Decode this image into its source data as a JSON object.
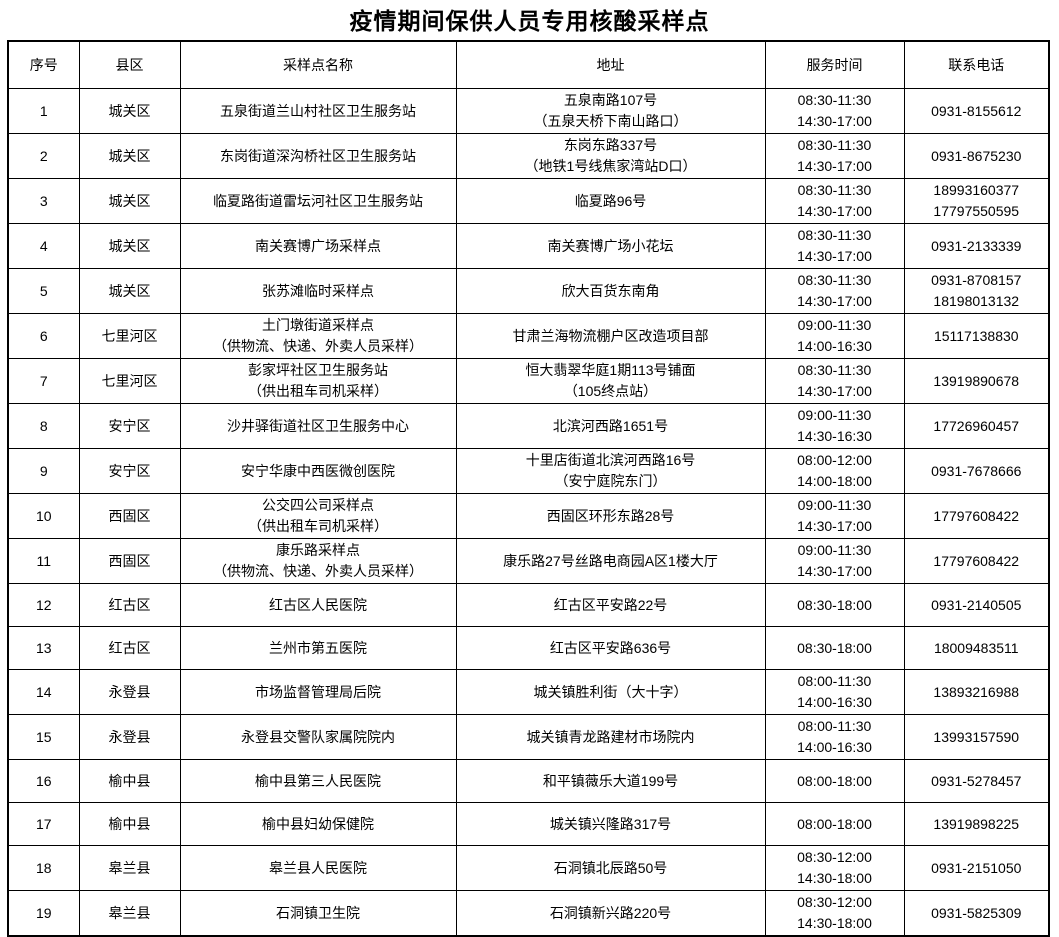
{
  "page": {
    "title": "疫情期间保供人员专用核酸采样点",
    "background_color": "#ffffff",
    "text_color": "#000000",
    "border_color": "#000000"
  },
  "table": {
    "headers": [
      "序号",
      "县区",
      "采样点名称",
      "地址",
      "服务时间",
      "联系电话"
    ],
    "rows": [
      {
        "no": "1",
        "district": "城关区",
        "name": [
          "五泉街道兰山村社区卫生服务站"
        ],
        "address": [
          "五泉南路107号",
          "（五泉天桥下南山路口）"
        ],
        "hours": [
          "08:30-11:30",
          "14:30-17:00"
        ],
        "phone": [
          "0931-8155612"
        ]
      },
      {
        "no": "2",
        "district": "城关区",
        "name": [
          "东岗街道深沟桥社区卫生服务站"
        ],
        "address": [
          "东岗东路337号",
          "（地铁1号线焦家湾站D口）"
        ],
        "hours": [
          "08:30-11:30",
          "14:30-17:00"
        ],
        "phone": [
          "0931-8675230"
        ]
      },
      {
        "no": "3",
        "district": "城关区",
        "name": [
          "临夏路街道雷坛河社区卫生服务站"
        ],
        "address": [
          "临夏路96号"
        ],
        "hours": [
          "08:30-11:30",
          "14:30-17:00"
        ],
        "phone": [
          "18993160377",
          "17797550595"
        ]
      },
      {
        "no": "4",
        "district": "城关区",
        "name": [
          "南关赛博广场采样点"
        ],
        "address": [
          "南关赛博广场小花坛"
        ],
        "hours": [
          "08:30-11:30",
          "14:30-17:00"
        ],
        "phone": [
          "0931-2133339"
        ]
      },
      {
        "no": "5",
        "district": "城关区",
        "name": [
          "张苏滩临时采样点"
        ],
        "address": [
          "欣大百货东南角"
        ],
        "hours": [
          "08:30-11:30",
          "14:30-17:00"
        ],
        "phone": [
          "0931-8708157",
          "18198013132"
        ]
      },
      {
        "no": "6",
        "district": "七里河区",
        "name": [
          "土门墩街道采样点",
          "（供物流、快递、外卖人员采样）"
        ],
        "address": [
          "甘肃兰海物流棚户区改造项目部"
        ],
        "hours": [
          "09:00-11:30",
          "14:00-16:30"
        ],
        "phone": [
          "15117138830"
        ]
      },
      {
        "no": "7",
        "district": "七里河区",
        "name": [
          "彭家坪社区卫生服务站",
          "（供出租车司机采样）"
        ],
        "address": [
          "恒大翡翠华庭1期113号铺面",
          "（105终点站）"
        ],
        "hours": [
          "08:30-11:30",
          "14:30-17:00"
        ],
        "phone": [
          "13919890678"
        ]
      },
      {
        "no": "8",
        "district": "安宁区",
        "name": [
          "沙井驿街道社区卫生服务中心"
        ],
        "address": [
          "北滨河西路1651号"
        ],
        "hours": [
          "09:00-11:30",
          "14:30-16:30"
        ],
        "phone": [
          "17726960457"
        ]
      },
      {
        "no": "9",
        "district": "安宁区",
        "name": [
          "安宁华康中西医微创医院"
        ],
        "address": [
          "十里店街道北滨河西路16号",
          "（安宁庭院东门）"
        ],
        "hours": [
          "08:00-12:00",
          "14:00-18:00"
        ],
        "phone": [
          "0931-7678666"
        ]
      },
      {
        "no": "10",
        "district": "西固区",
        "name": [
          "公交四公司采样点",
          "（供出租车司机采样）"
        ],
        "address": [
          "西固区环形东路28号"
        ],
        "hours": [
          "09:00-11:30",
          "14:30-17:00"
        ],
        "phone": [
          "17797608422"
        ]
      },
      {
        "no": "11",
        "district": "西固区",
        "name": [
          "康乐路采样点",
          "（供物流、快递、外卖人员采样）"
        ],
        "address": [
          "康乐路27号丝路电商园A区1楼大厅"
        ],
        "hours": [
          "09:00-11:30",
          "14:30-17:00"
        ],
        "phone": [
          "17797608422"
        ]
      },
      {
        "no": "12",
        "district": "红古区",
        "name": [
          "红古区人民医院"
        ],
        "address": [
          "红古区平安路22号"
        ],
        "hours": [
          "08:30-18:00"
        ],
        "phone": [
          "0931-2140505"
        ]
      },
      {
        "no": "13",
        "district": "红古区",
        "name": [
          "兰州市第五医院"
        ],
        "address": [
          "红古区平安路636号"
        ],
        "hours": [
          "08:30-18:00"
        ],
        "phone": [
          "18009483511"
        ]
      },
      {
        "no": "14",
        "district": "永登县",
        "name": [
          "市场监督管理局后院"
        ],
        "address": [
          "城关镇胜利街（大十字）"
        ],
        "hours": [
          "08:00-11:30",
          "14:00-16:30"
        ],
        "phone": [
          "13893216988"
        ]
      },
      {
        "no": "15",
        "district": "永登县",
        "name": [
          "永登县交警队家属院院内"
        ],
        "address": [
          "城关镇青龙路建材市场院内"
        ],
        "hours": [
          "08:00-11:30",
          "14:00-16:30"
        ],
        "phone": [
          "13993157590"
        ]
      },
      {
        "no": "16",
        "district": "榆中县",
        "name": [
          "榆中县第三人民医院"
        ],
        "address": [
          "和平镇薇乐大道199号"
        ],
        "hours": [
          "08:00-18:00"
        ],
        "phone": [
          "0931-5278457"
        ]
      },
      {
        "no": "17",
        "district": "榆中县",
        "name": [
          "榆中县妇幼保健院"
        ],
        "address": [
          "城关镇兴隆路317号"
        ],
        "hours": [
          "08:00-18:00"
        ],
        "phone": [
          "13919898225"
        ]
      },
      {
        "no": "18",
        "district": "皋兰县",
        "name": [
          "皋兰县人民医院"
        ],
        "address": [
          "石洞镇北辰路50号"
        ],
        "hours": [
          "08:30-12:00",
          "14:30-18:00"
        ],
        "phone": [
          "0931-2151050"
        ]
      },
      {
        "no": "19",
        "district": "皋兰县",
        "name": [
          "石洞镇卫生院"
        ],
        "address": [
          "石洞镇新兴路220号"
        ],
        "hours": [
          "08:30-12:00",
          "14:30-18:00"
        ],
        "phone": [
          "0931-5825309"
        ]
      }
    ]
  }
}
